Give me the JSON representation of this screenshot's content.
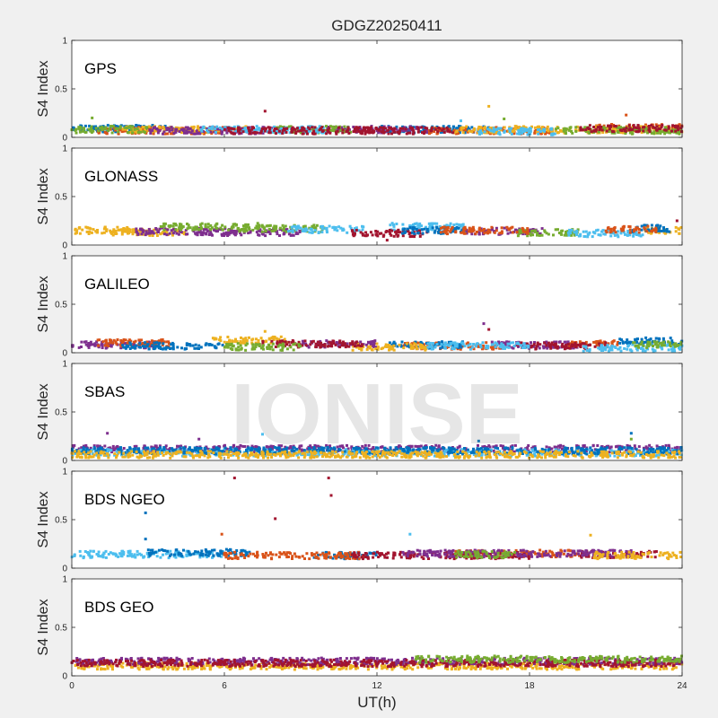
{
  "figure": {
    "title": "GDGZ20250411",
    "xlabel": "UT(h)",
    "watermark": "IONISE",
    "background": "#f0f0f0",
    "axes_background": "#ffffff"
  },
  "palette": [
    "#0072bd",
    "#d95319",
    "#edb120",
    "#7e2f8e",
    "#77ac30",
    "#4dbeee",
    "#a2142f"
  ],
  "chart_data": [
    {
      "type": "scatter",
      "panel_label": "GPS",
      "ylabel": "S4 Index",
      "xlim": [
        0,
        24
      ],
      "ylim": [
        0,
        1
      ],
      "xticks": [
        0,
        6,
        12,
        18,
        24
      ],
      "yticks": [
        0,
        0.5,
        1
      ],
      "ytick_labels": [
        "0",
        "0.5",
        "1"
      ],
      "show_xtick_labels": false,
      "series": [
        {
          "color_index": 0,
          "segments": [
            [
              0.0,
              4.0,
              0.09
            ],
            [
              12.0,
              16.5,
              0.08
            ]
          ]
        },
        {
          "color_index": 1,
          "segments": [
            [
              1.0,
              6.0,
              0.07
            ],
            [
              14.0,
              19.0,
              0.07
            ],
            [
              20.5,
              24.0,
              0.1
            ]
          ]
        },
        {
          "color_index": 2,
          "segments": [
            [
              2.0,
              7.0,
              0.08
            ],
            [
              15.0,
              24.0,
              0.08
            ]
          ]
        },
        {
          "color_index": 3,
          "segments": [
            [
              3.0,
              8.5,
              0.07
            ],
            [
              10.0,
              14.0,
              0.08
            ]
          ]
        },
        {
          "color_index": 4,
          "segments": [
            [
              0.0,
              3.0,
              0.08
            ],
            [
              8.0,
              11.0,
              0.08
            ],
            [
              19.0,
              24.0,
              0.07
            ]
          ]
        },
        {
          "color_index": 5,
          "segments": [
            [
              5.0,
              10.0,
              0.08
            ],
            [
              16.0,
              19.0,
              0.06
            ]
          ]
        },
        {
          "color_index": 6,
          "segments": [
            [
              6.0,
              12.0,
              0.07
            ],
            [
              11.0,
              15.0,
              0.07
            ],
            [
              20.0,
              24.0,
              0.09
            ]
          ]
        }
      ],
      "outliers": [
        {
          "x": 0.8,
          "y": 0.2,
          "color_index": 4
        },
        {
          "x": 7.6,
          "y": 0.27,
          "color_index": 6
        },
        {
          "x": 15.3,
          "y": 0.17,
          "color_index": 5
        },
        {
          "x": 16.4,
          "y": 0.32,
          "color_index": 2
        },
        {
          "x": 17.0,
          "y": 0.19,
          "color_index": 4
        },
        {
          "x": 21.8,
          "y": 0.23,
          "color_index": 1
        }
      ]
    },
    {
      "type": "scatter",
      "panel_label": "GLONASS",
      "ylabel": "S4 Index",
      "xlim": [
        0,
        24
      ],
      "ylim": [
        0,
        1
      ],
      "xticks": [
        0,
        6,
        12,
        18,
        24
      ],
      "yticks": [
        0,
        0.5,
        1
      ],
      "ytick_labels": [
        "0",
        "0.5",
        "1"
      ],
      "show_xtick_labels": false,
      "series": [
        {
          "color_index": 2,
          "segments": [
            [
              0.0,
              2.5,
              0.15
            ],
            [
              1.5,
              4.5,
              0.13
            ],
            [
              22.5,
              24.0,
              0.15
            ]
          ]
        },
        {
          "color_index": 3,
          "segments": [
            [
              2.5,
              6.5,
              0.14
            ],
            [
              5.0,
              9.0,
              0.13
            ],
            [
              15.5,
              18.5,
              0.14
            ]
          ]
        },
        {
          "color_index": 4,
          "segments": [
            [
              3.5,
              7.5,
              0.19
            ],
            [
              6.5,
              10.0,
              0.17
            ],
            [
              17.5,
              20.0,
              0.13
            ]
          ]
        },
        {
          "color_index": 5,
          "segments": [
            [
              8.5,
              11.5,
              0.16
            ],
            [
              12.5,
              15.5,
              0.19
            ],
            [
              19.5,
              22.5,
              0.12
            ]
          ]
        },
        {
          "color_index": 6,
          "segments": [
            [
              11.0,
              14.0,
              0.12
            ]
          ]
        },
        {
          "color_index": 0,
          "segments": [
            [
              13.0,
              15.5,
              0.15
            ],
            [
              22.0,
              23.5,
              0.17
            ]
          ]
        },
        {
          "color_index": 1,
          "segments": [
            [
              14.5,
              18.0,
              0.15
            ],
            [
              21.0,
              23.0,
              0.16
            ]
          ]
        }
      ],
      "outliers": [
        {
          "x": 23.8,
          "y": 0.25,
          "color_index": 6
        },
        {
          "x": 12.4,
          "y": 0.05,
          "color_index": 6
        }
      ]
    },
    {
      "type": "scatter",
      "panel_label": "GALILEO",
      "ylabel": "S4 Index",
      "xlim": [
        0,
        24
      ],
      "ylim": [
        0,
        1
      ],
      "xticks": [
        0,
        6,
        12,
        18,
        24
      ],
      "yticks": [
        0,
        0.5,
        1
      ],
      "ytick_labels": [
        "0",
        "0.5",
        "1"
      ],
      "show_xtick_labels": false,
      "series": [
        {
          "color_index": 3,
          "segments": [
            [
              0.0,
              3.5,
              0.08
            ],
            [
              9.0,
              12.0,
              0.09
            ],
            [
              16.5,
              20.0,
              0.08
            ]
          ]
        },
        {
          "color_index": 1,
          "segments": [
            [
              1.0,
              4.0,
              0.1
            ],
            [
              13.0,
              17.0,
              0.07
            ],
            [
              19.5,
              21.5,
              0.09
            ]
          ]
        },
        {
          "color_index": 0,
          "segments": [
            [
              2.0,
              6.0,
              0.07
            ],
            [
              12.5,
              15.5,
              0.08
            ],
            [
              21.5,
              24.0,
              0.12
            ]
          ]
        },
        {
          "color_index": 2,
          "segments": [
            [
              5.5,
              8.5,
              0.13
            ],
            [
              11.0,
              14.0,
              0.06
            ]
          ]
        },
        {
          "color_index": 6,
          "segments": [
            [
              7.5,
              11.5,
              0.09
            ],
            [
              17.5,
              21.0,
              0.07
            ]
          ]
        },
        {
          "color_index": 5,
          "segments": [
            [
              14.0,
              18.0,
              0.07
            ],
            [
              20.0,
              24.0,
              0.05
            ]
          ]
        },
        {
          "color_index": 4,
          "segments": [
            [
              6.0,
              9.0,
              0.06
            ],
            [
              22.0,
              24.0,
              0.08
            ]
          ]
        }
      ],
      "outliers": [
        {
          "x": 7.6,
          "y": 0.22,
          "color_index": 2
        },
        {
          "x": 16.2,
          "y": 0.3,
          "color_index": 3
        },
        {
          "x": 16.4,
          "y": 0.24,
          "color_index": 6
        }
      ]
    },
    {
      "type": "scatter",
      "panel_label": "SBAS",
      "ylabel": "S4 Index",
      "xlim": [
        0,
        24
      ],
      "ylim": [
        0,
        1
      ],
      "xticks": [
        0,
        6,
        12,
        18,
        24
      ],
      "yticks": [
        0,
        0.5,
        1
      ],
      "ytick_labels": [
        "0",
        "0.5",
        "1"
      ],
      "show_xtick_labels": false,
      "series": [
        {
          "color_index": 3,
          "segments": [
            [
              0.0,
              24.0,
              0.12
            ]
          ]
        },
        {
          "color_index": 5,
          "segments": [
            [
              0.0,
              24.0,
              0.08
            ]
          ]
        },
        {
          "color_index": 0,
          "segments": [
            [
              0.0,
              24.0,
              0.1
            ]
          ]
        },
        {
          "color_index": 2,
          "segments": [
            [
              0.0,
              24.0,
              0.06
            ]
          ]
        }
      ],
      "outliers": [
        {
          "x": 1.4,
          "y": 0.28,
          "color_index": 3
        },
        {
          "x": 5.0,
          "y": 0.22,
          "color_index": 3
        },
        {
          "x": 7.5,
          "y": 0.27,
          "color_index": 5
        },
        {
          "x": 16.0,
          "y": 0.2,
          "color_index": 0
        },
        {
          "x": 22.0,
          "y": 0.28,
          "color_index": 0
        },
        {
          "x": 22.0,
          "y": 0.22,
          "color_index": 4
        }
      ]
    },
    {
      "type": "scatter",
      "panel_label": "BDS NGEO",
      "ylabel": "S4 Index",
      "xlim": [
        0,
        24
      ],
      "ylim": [
        0,
        1
      ],
      "xticks": [
        0,
        6,
        12,
        18,
        24
      ],
      "yticks": [
        0,
        0.5,
        1
      ],
      "ytick_labels": [
        "0",
        "0.5",
        "1"
      ],
      "show_xtick_labels": false,
      "series": [
        {
          "color_index": 5,
          "segments": [
            [
              0.0,
              6.0,
              0.14
            ]
          ]
        },
        {
          "color_index": 0,
          "segments": [
            [
              3.0,
              7.0,
              0.16
            ],
            [
              9.5,
              12.0,
              0.13
            ]
          ]
        },
        {
          "color_index": 1,
          "segments": [
            [
              6.0,
              11.5,
              0.13
            ],
            [
              15.0,
              20.0,
              0.15
            ]
          ]
        },
        {
          "color_index": 6,
          "segments": [
            [
              11.0,
              18.0,
              0.13
            ],
            [
              20.0,
              23.0,
              0.14
            ]
          ]
        },
        {
          "color_index": 3,
          "segments": [
            [
              13.0,
              22.0,
              0.15
            ]
          ]
        },
        {
          "color_index": 2,
          "segments": [
            [
              20.5,
              24.0,
              0.13
            ]
          ]
        },
        {
          "color_index": 4,
          "segments": [
            [
              15.0,
              17.5,
              0.14
            ]
          ]
        }
      ],
      "outliers": [
        {
          "x": 6.4,
          "y": 0.93,
          "color_index": 6
        },
        {
          "x": 10.1,
          "y": 0.93,
          "color_index": 6
        },
        {
          "x": 10.2,
          "y": 0.75,
          "color_index": 6
        },
        {
          "x": 2.9,
          "y": 0.57,
          "color_index": 0
        },
        {
          "x": 8.0,
          "y": 0.51,
          "color_index": 6
        },
        {
          "x": 2.9,
          "y": 0.3,
          "color_index": 0
        },
        {
          "x": 5.9,
          "y": 0.35,
          "color_index": 1
        },
        {
          "x": 13.3,
          "y": 0.35,
          "color_index": 5
        },
        {
          "x": 20.4,
          "y": 0.34,
          "color_index": 2
        }
      ]
    },
    {
      "type": "scatter",
      "panel_label": "BDS GEO",
      "ylabel": "S4 Index",
      "xlim": [
        0,
        24
      ],
      "ylim": [
        0,
        1
      ],
      "xticks": [
        0,
        6,
        12,
        18,
        24
      ],
      "yticks": [
        0,
        0.5,
        1
      ],
      "ytick_labels": [
        "0",
        "0.5",
        "1"
      ],
      "show_xtick_labels": true,
      "xtick_labels": [
        "0",
        "6",
        "12",
        "18",
        "24"
      ],
      "series": [
        {
          "color_index": 2,
          "segments": [
            [
              0.0,
              24.0,
              0.1
            ]
          ]
        },
        {
          "color_index": 3,
          "segments": [
            [
              0.0,
              24.0,
              0.15
            ]
          ]
        },
        {
          "color_index": 6,
          "segments": [
            [
              0.0,
              24.0,
              0.13
            ]
          ]
        },
        {
          "color_index": 4,
          "segments": [
            [
              13.5,
              24.0,
              0.17
            ]
          ]
        }
      ],
      "outliers": []
    }
  ]
}
